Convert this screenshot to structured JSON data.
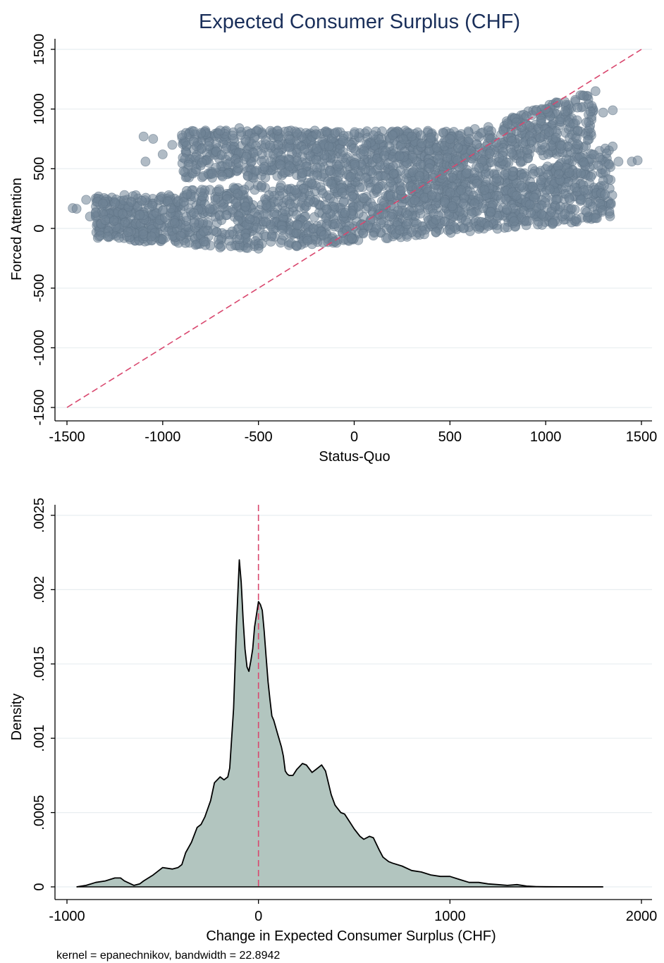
{
  "chart_data": [
    {
      "type": "scatter",
      "title": "Expected Consumer Surplus (CHF)",
      "xlabel": "Status-Quo",
      "ylabel": "Forced Attention",
      "xlim": [
        -1500,
        1500
      ],
      "ylim": [
        -1500,
        1500
      ],
      "xticks": [
        "-1500",
        "-1000",
        "-500",
        "0",
        "500",
        "1000",
        "1500"
      ],
      "yticks": [
        "-1500",
        "-1000",
        "-500",
        "0",
        "500",
        "1000",
        "1500"
      ],
      "grid": true,
      "reference_line": {
        "style": "dashed",
        "from": [
          -1500,
          -1500
        ],
        "to": [
          1500,
          1500
        ]
      },
      "point_color": "#6f8396",
      "line_color": "#d9476e",
      "clusters": [
        {
          "x": [
            -1050,
            1250
          ],
          "y_min_at": [
            -700,
            -180
          ],
          "y_top": 640,
          "slope_hi": 0.3
        },
        {
          "x": [
            -1350,
            1350
          ],
          "y_band": [
            -150,
            420
          ]
        },
        {
          "x": [
            -900,
            1250
          ],
          "y_band": [
            480,
            800
          ]
        }
      ],
      "sample_points": [
        [
          -1470,
          170
        ],
        [
          -1450,
          165
        ],
        [
          -1400,
          240
        ],
        [
          -1380,
          100
        ],
        [
          -1350,
          130
        ],
        [
          -1300,
          70
        ],
        [
          -1250,
          210
        ],
        [
          -1200,
          280
        ],
        [
          -1100,
          770
        ],
        [
          -1090,
          560
        ],
        [
          -1050,
          750
        ],
        [
          -1000,
          620
        ],
        [
          -950,
          700
        ],
        [
          -900,
          780
        ],
        [
          -800,
          800
        ],
        [
          -700,
          820
        ],
        [
          -600,
          840
        ],
        [
          -500,
          830
        ],
        [
          -400,
          820
        ],
        [
          -300,
          800
        ],
        [
          -200,
          790
        ],
        [
          -100,
          800
        ],
        [
          0,
          790
        ],
        [
          100,
          780
        ],
        [
          200,
          780
        ],
        [
          300,
          770
        ],
        [
          400,
          760
        ],
        [
          500,
          750
        ],
        [
          600,
          750
        ],
        [
          700,
          820
        ],
        [
          800,
          880
        ],
        [
          900,
          940
        ],
        [
          1000,
          1000
        ],
        [
          1100,
          1060
        ],
        [
          1200,
          1110
        ],
        [
          1260,
          1150
        ],
        [
          1300,
          970
        ],
        [
          1350,
          990
        ],
        [
          1450,
          560
        ],
        [
          1480,
          570
        ],
        [
          1380,
          560
        ],
        [
          1300,
          400
        ],
        [
          1200,
          320
        ],
        [
          -700,
          -160
        ],
        [
          -500,
          -170
        ],
        [
          -300,
          -150
        ],
        [
          -100,
          -110
        ],
        [
          100,
          -60
        ],
        [
          300,
          -30
        ],
        [
          500,
          -10
        ],
        [
          700,
          20
        ],
        [
          900,
          60
        ],
        [
          1100,
          120
        ]
      ]
    },
    {
      "type": "area",
      "xlabel": "Change in Expected Consumer Surplus (CHF)",
      "ylabel": "Density",
      "xlim": [
        -1000,
        2000
      ],
      "ylim": [
        0,
        0.0025
      ],
      "xticks": [
        "-1000",
        "0",
        "1000",
        "2000"
      ],
      "yticks": [
        "0",
        ".0005",
        ".001",
        ".0015",
        ".002",
        ".0025"
      ],
      "grid": true,
      "reference_line": {
        "style": "dashed",
        "x": 0
      },
      "fill_color": "#b2c5bf",
      "line_color": "#000000",
      "x": [
        -950,
        -900,
        -850,
        -800,
        -750,
        -720,
        -700,
        -650,
        -620,
        -600,
        -550,
        -500,
        -450,
        -420,
        -400,
        -380,
        -350,
        -320,
        -300,
        -280,
        -250,
        -230,
        -200,
        -180,
        -160,
        -150,
        -130,
        -115,
        -100,
        -90,
        -80,
        -70,
        -60,
        -50,
        -40,
        -30,
        -20,
        0,
        10,
        20,
        30,
        40,
        50,
        60,
        70,
        80,
        100,
        120,
        130,
        140,
        150,
        160,
        180,
        200,
        230,
        250,
        280,
        300,
        330,
        350,
        380,
        400,
        430,
        450,
        480,
        500,
        530,
        550,
        580,
        600,
        630,
        650,
        680,
        700,
        750,
        800,
        850,
        900,
        950,
        1000,
        1050,
        1100,
        1150,
        1200,
        1250,
        1300,
        1350,
        1400,
        1450,
        1500,
        1600,
        1700,
        1800
      ],
      "y": [
        0,
        1e-05,
        3e-05,
        4e-05,
        6e-05,
        6e-05,
        4e-05,
        1e-05,
        2e-05,
        4e-05,
        8e-05,
        0.00013,
        0.00012,
        0.00013,
        0.00015,
        0.00023,
        0.0003,
        0.0004,
        0.00042,
        0.00047,
        0.00058,
        0.0007,
        0.00074,
        0.00072,
        0.00074,
        0.0008,
        0.0012,
        0.00175,
        0.0022,
        0.00205,
        0.0018,
        0.0016,
        0.00148,
        0.00145,
        0.00152,
        0.0016,
        0.00175,
        0.00192,
        0.0019,
        0.00186,
        0.00172,
        0.00155,
        0.00138,
        0.00126,
        0.00115,
        0.00112,
        0.00103,
        0.00094,
        0.00088,
        0.00078,
        0.00076,
        0.00075,
        0.00075,
        0.00079,
        0.00083,
        0.00082,
        0.00077,
        0.00079,
        0.00082,
        0.00078,
        0.00062,
        0.00055,
        0.0005,
        0.00049,
        0.00043,
        0.00039,
        0.00034,
        0.00032,
        0.00034,
        0.00033,
        0.00025,
        0.0002,
        0.00017,
        0.00016,
        0.00014,
        0.00011,
        0.0001,
        8e-05,
        7e-05,
        7e-05,
        5e-05,
        3e-05,
        3e-05,
        2e-05,
        1.5e-05,
        1e-05,
        1.5e-05,
        5e-06,
        2e-06,
        1e-06,
        5e-07,
        2e-07,
        0
      ],
      "note": "kernel = epanechnikov, bandwidth = 22.8942"
    }
  ]
}
